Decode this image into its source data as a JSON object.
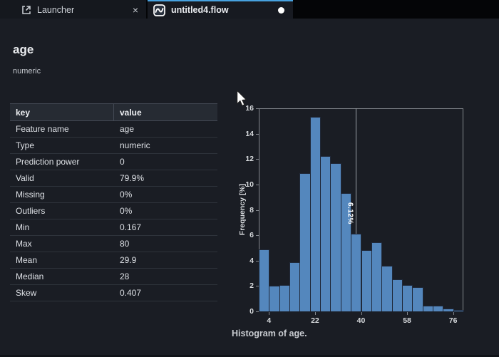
{
  "tabs": [
    {
      "label": "Launcher",
      "icon": "launcher-icon",
      "close_glyph": "×",
      "active": false
    },
    {
      "label": "untitled4.flow",
      "icon": "flow-icon",
      "dirty": true,
      "active": true
    }
  ],
  "feature": {
    "title": "age",
    "subtitle": "numeric"
  },
  "stats_table": {
    "columns": [
      "key",
      "value"
    ],
    "rows": [
      [
        "Feature name",
        "age"
      ],
      [
        "Type",
        "numeric"
      ],
      [
        "Prediction power",
        "0"
      ],
      [
        "Valid",
        "79.9%"
      ],
      [
        "Missing",
        "0%"
      ],
      [
        "Outliers",
        "0%"
      ],
      [
        "Min",
        "0.167"
      ],
      [
        "Max",
        "80"
      ],
      [
        "Mean",
        "29.9"
      ],
      [
        "Median",
        "28"
      ],
      [
        "Skew",
        "0.407"
      ]
    ]
  },
  "chart_data": {
    "type": "bar",
    "title": "",
    "caption": "Histogram of age.",
    "xlabel": "",
    "ylabel": "Frequency [%]",
    "xlim": [
      0,
      80
    ],
    "ylim": [
      0,
      16
    ],
    "x_ticks": [
      4,
      22,
      40,
      58,
      76
    ],
    "y_ticks": [
      0,
      2,
      4,
      6,
      8,
      10,
      12,
      14,
      16
    ],
    "bin_start": 0,
    "bin_width": 4,
    "values": [
      4.9,
      2.0,
      2.1,
      3.85,
      10.9,
      15.35,
      12.25,
      11.65,
      9.3,
      6.12,
      4.85,
      5.45,
      3.6,
      2.55,
      2.05,
      1.9,
      0.45,
      0.45,
      0.2,
      0.1
    ],
    "annotation": {
      "bin_index": 9,
      "label": "6.12%"
    },
    "grid": false,
    "legend": "none"
  },
  "colors": {
    "bar_fill": "#5487bd",
    "bar_stroke": "#20293a",
    "axis": "#83878d",
    "active_tab_accent": "#47a2e0",
    "page_bg": "#1a1d24",
    "tabbar_bg": "#040507",
    "table_header_bg": "#262b33",
    "ref_line": "#9aa0a6"
  }
}
